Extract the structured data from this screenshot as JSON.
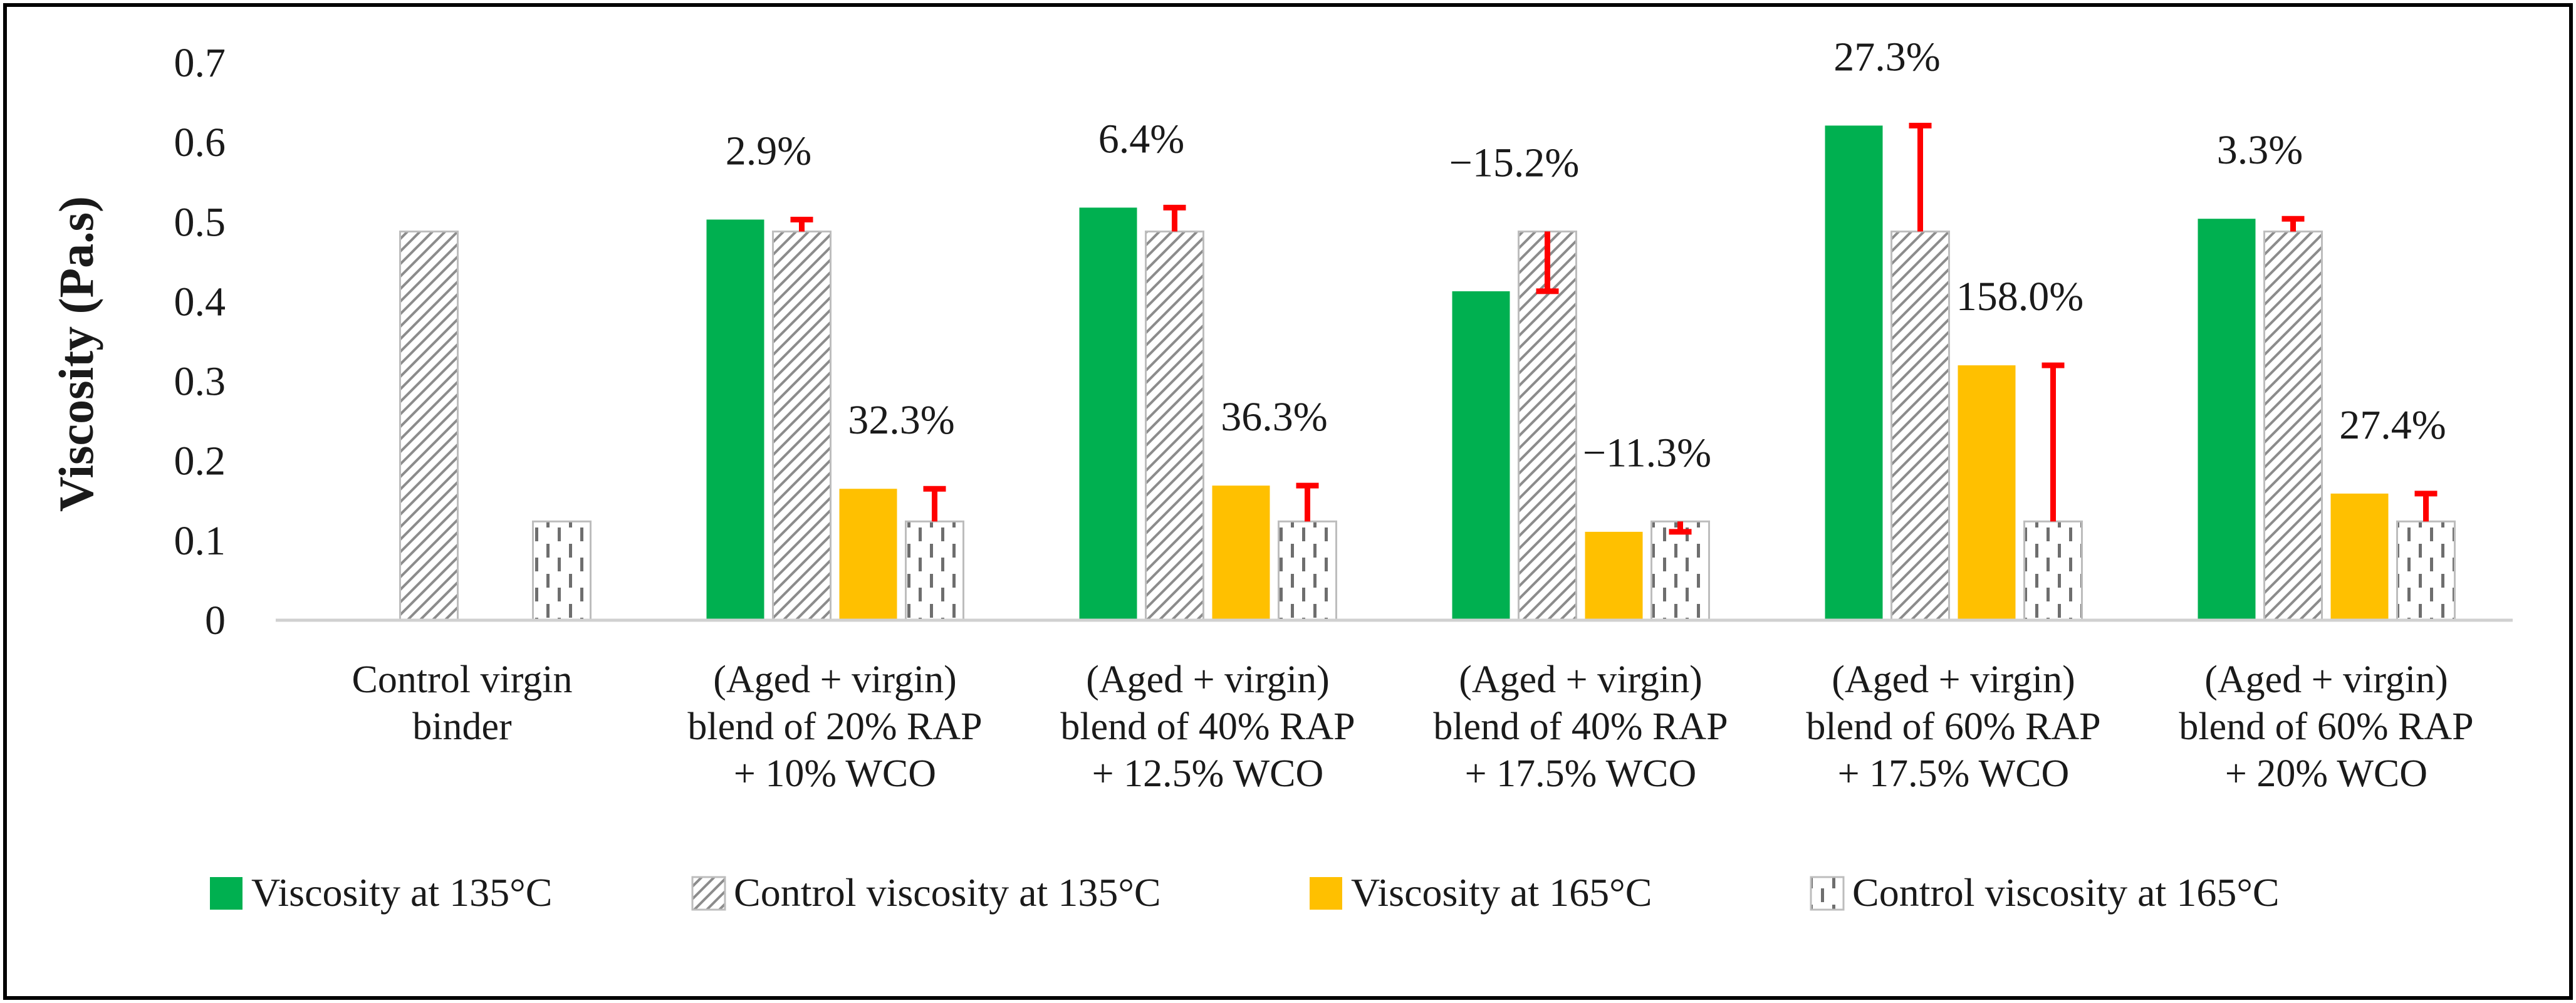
{
  "chart_data": {
    "type": "bar",
    "title": "",
    "xlabel": "",
    "ylabel": "Viscosity (Pa.s)",
    "ylim": [
      0,
      0.7
    ],
    "yticks": [
      "0",
      "0.1",
      "0.2",
      "0.3",
      "0.4",
      "0.5",
      "0.6",
      "0.7"
    ],
    "grid": false,
    "legend_position": "bottom",
    "categories": [
      [
        "Control virgin",
        "binder"
      ],
      [
        "(Aged + virgin)",
        "blend of 20% RAP",
        "+ 10% WCO"
      ],
      [
        "(Aged + virgin)",
        "blend of 40% RAP",
        "+ 12.5% WCO"
      ],
      [
        "(Aged + virgin)",
        "blend of 40% RAP",
        "+ 17.5% WCO"
      ],
      [
        "(Aged + virgin)",
        "blend of 60% RAP",
        "+ 17.5% WCO"
      ],
      [
        "(Aged + virgin)",
        "blend of 60% RAP",
        "+ 20% WCO"
      ]
    ],
    "series": [
      {
        "name": "Viscosity at 135°C",
        "style": "solid",
        "color": "#00b050",
        "values": [
          null,
          0.503,
          0.518,
          0.413,
          0.621,
          0.504
        ]
      },
      {
        "name": "Control viscosity at 135°C",
        "style": "diagonal-hatch",
        "color": "#a6a6a6",
        "values": [
          0.488,
          0.488,
          0.488,
          0.488,
          0.488,
          0.488
        ]
      },
      {
        "name": "Viscosity at 165°C",
        "style": "solid",
        "color": "#ffc000",
        "values": [
          null,
          0.165,
          0.169,
          0.111,
          0.32,
          0.159
        ]
      },
      {
        "name": "Control viscosity at 165°C",
        "style": "dashed-vertical",
        "color": "#a6a6a6",
        "values": [
          0.124,
          0.124,
          0.124,
          0.124,
          0.124,
          0.124
        ]
      }
    ],
    "change_bars": {
      "color": "#ff0000",
      "at_135": [
        null,
        0.503,
        0.518,
        0.413,
        0.621,
        0.504
      ],
      "at_165": [
        null,
        0.165,
        0.169,
        0.111,
        0.32,
        0.159
      ]
    },
    "annotations": {
      "at_135": [
        null,
        "2.9%",
        "6.4%",
        "−15.2%",
        "27.3%",
        "3.3%"
      ],
      "at_165": [
        null,
        "32.3%",
        "36.3%",
        "−11.3%",
        "158.0%",
        "27.4%"
      ]
    }
  }
}
